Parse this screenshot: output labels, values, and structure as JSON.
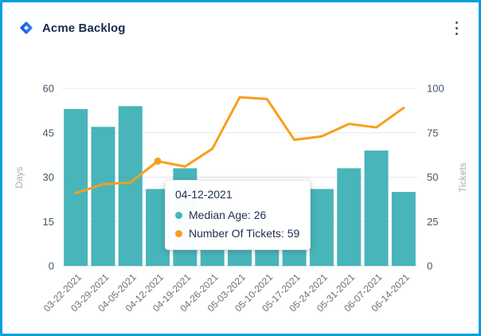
{
  "header": {
    "title": "Acme Backlog"
  },
  "colors": {
    "frame": "#00A0DF",
    "bar": "#48B5BA",
    "line": "#F99E1C",
    "grid": "#E9E9E9",
    "baseline": "#DDDDDD",
    "tick_label": "#44546E",
    "date_label": "#6E6E6E",
    "axis_name": "#ACACB6",
    "title_text": "#172B4D",
    "logo_light": "#3584F7",
    "logo_dark": "#1453D6"
  },
  "chart_data": {
    "type": "combo",
    "title": "Acme Backlog",
    "categories": [
      "03-22-2021",
      "03-29-2021",
      "04-05-2021",
      "04-12-2021",
      "04-19-2021",
      "04-26-2021",
      "05-03-2021",
      "05-10-2021",
      "05-17-2021",
      "05-24-2021",
      "05-31-2021",
      "06-07-2021",
      "06-14-2021"
    ],
    "series": [
      {
        "name": "Median Age",
        "type": "bar",
        "yaxis": "left",
        "color": "#48B5BA",
        "values": [
          53,
          47,
          54,
          26,
          33,
          6,
          6,
          6,
          6,
          26,
          33,
          39,
          25
        ]
      },
      {
        "name": "Number Of Tickets",
        "type": "line",
        "yaxis": "right",
        "color": "#F99E1C",
        "values": [
          41,
          46,
          47,
          59,
          56,
          66,
          95,
          94,
          71,
          73,
          80,
          78,
          89
        ]
      }
    ],
    "left_axis": {
      "name": "Days",
      "min": 0,
      "max": 60,
      "ticks": [
        0,
        15,
        30,
        45,
        60
      ]
    },
    "right_axis": {
      "name": "Tickets",
      "min": 0,
      "max": 100,
      "ticks": [
        0,
        25,
        50,
        75,
        100
      ]
    },
    "grid": true,
    "legend": "none",
    "highlight_index": 3
  },
  "tooltip": {
    "title": "04-12-2021",
    "items": [
      {
        "name": "Median Age",
        "value": 26,
        "text": "Median Age: 26",
        "color": "#48B5BA"
      },
      {
        "name": "Number Of Tickets",
        "value": 59,
        "text": "Number Of Tickets: 59",
        "color": "#F99E1C"
      }
    ]
  }
}
